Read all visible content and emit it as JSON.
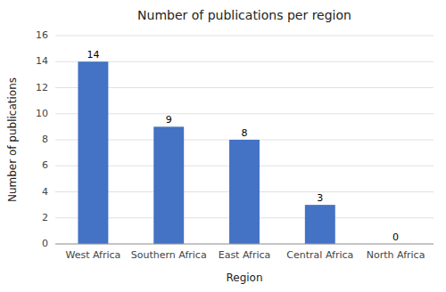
{
  "chart_data": {
    "type": "bar",
    "title": "Number of publications per region",
    "xlabel": "Region",
    "ylabel": "Number of publications",
    "categories": [
      "West Africa",
      "Southern Africa",
      "East Africa",
      "Central Africa",
      "North Africa"
    ],
    "values": [
      14,
      9,
      8,
      3,
      0
    ],
    "color": "#4472C4",
    "ylim": [
      0,
      16
    ],
    "yticks": [
      0,
      2,
      4,
      6,
      8,
      10,
      12,
      14,
      16
    ],
    "grid": true,
    "data_labels": true
  }
}
